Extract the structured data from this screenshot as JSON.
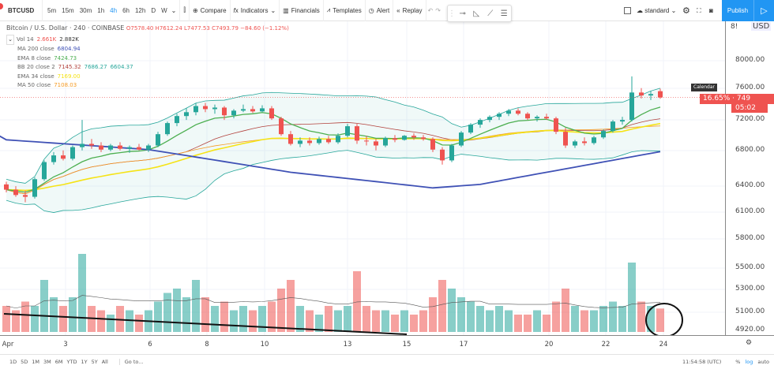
{
  "topbar": {
    "symbol": "BTCUSD",
    "intervals": [
      "5m",
      "15m",
      "30m",
      "1h",
      "4h",
      "6h",
      "12h",
      "D",
      "W"
    ],
    "active_interval": "4h",
    "interval_dropdown": "⌄",
    "candle_icon": "candles-icon",
    "compare": "Compare",
    "indicators": "Indicators",
    "financials": "Financials",
    "templates": "Templates",
    "alert": "Alert",
    "replay": "Replay",
    "undo": "↶",
    "redo": "↷",
    "layout": "standard",
    "publish": "Publish"
  },
  "legend": {
    "title": "Bitcoin / U.S. Dollar · 240 · COINBASE",
    "ohlc": "O7578.40 H7612.24 L7477.53 C7493.79 −84.60 (−1.12%)",
    "indicators": [
      {
        "name": "Vol 14",
        "values": [
          "2.661K",
          "2.882K"
        ],
        "colors": [
          "#ef5350",
          "#333333"
        ]
      },
      {
        "name": "MA 200 close",
        "values": [
          "6804.94"
        ],
        "colors": [
          "#3f51b5"
        ]
      },
      {
        "name": "EMA 8 close",
        "values": [
          "7424.73"
        ],
        "colors": [
          "#4caf50"
        ]
      },
      {
        "name": "BB 20 close 2",
        "values": [
          "7145.32",
          "7686.27",
          "6604.37"
        ],
        "colors": [
          "#b2413c",
          "#26a69a",
          "#26a69a"
        ]
      },
      {
        "name": "EMA 34 close",
        "values": [
          "7169.00"
        ],
        "colors": [
          "#f5e316"
        ]
      },
      {
        "name": "MA 50 close",
        "values": [
          "7108.03"
        ],
        "colors": [
          "#f59a23"
        ]
      }
    ]
  },
  "axis": {
    "currency": "USD",
    "partial_top": "8!",
    "ticks": [
      "8000.00",
      "7600.00",
      "7200.00",
      "6800.00",
      "6400.00",
      "6100.00",
      "5800.00",
      "5500.00",
      "5300.00",
      "5100.00",
      "4920.00"
    ],
    "price_label": "16.65% · 749",
    "countdown": "05:02",
    "tooltip": "Calendar",
    "settings_glyph": "⚙"
  },
  "dates": [
    "Apr",
    "3",
    "6",
    "8",
    "10",
    "13",
    "15",
    "17",
    "20",
    "22",
    "24"
  ],
  "bottombar": {
    "ranges": [
      "1D",
      "5D",
      "1M",
      "3M",
      "6M",
      "YTD",
      "1Y",
      "5Y",
      "All"
    ],
    "goto": "Go to...",
    "time": "11:54:58 (UTC)",
    "pct": "%",
    "log": "log",
    "auto": "auto"
  },
  "colors": {
    "up": "#26a69a",
    "down": "#ef5350",
    "ma200": "#3f51b5",
    "ema8": "#4caf50",
    "ema34": "#f5e316",
    "ma50": "#f59a23",
    "bb": "#26a69a",
    "accent": "#2196f3"
  },
  "chart_data": {
    "type": "candlestick",
    "scale": "log",
    "candles": [
      [
        6420,
        6450,
        6330,
        6360
      ],
      [
        6360,
        6400,
        6280,
        6300
      ],
      [
        6300,
        6350,
        6220,
        6280
      ],
      [
        6280,
        6500,
        6260,
        6480
      ],
      [
        6480,
        6700,
        6460,
        6680
      ],
      [
        6680,
        6800,
        6650,
        6760
      ],
      [
        6760,
        6820,
        6700,
        6720
      ],
      [
        6720,
        6880,
        6700,
        6860
      ],
      [
        6860,
        7200,
        6820,
        6900
      ],
      [
        6900,
        6960,
        6840,
        6880
      ],
      [
        6880,
        6920,
        6800,
        6830
      ],
      [
        6830,
        6900,
        6810,
        6880
      ],
      [
        6880,
        6920,
        6820,
        6840
      ],
      [
        6840,
        6880,
        6790,
        6860
      ],
      [
        6860,
        6900,
        6820,
        6830
      ],
      [
        6830,
        6900,
        6800,
        6880
      ],
      [
        6880,
        7050,
        6860,
        7020
      ],
      [
        7020,
        7180,
        7000,
        7160
      ],
      [
        7160,
        7280,
        7120,
        7250
      ],
      [
        7250,
        7350,
        7200,
        7300
      ],
      [
        7300,
        7420,
        7260,
        7380
      ],
      [
        7380,
        7420,
        7300,
        7340
      ],
      [
        7340,
        7400,
        7280,
        7360
      ],
      [
        7360,
        7380,
        7200,
        7260
      ],
      [
        7260,
        7340,
        7220,
        7320
      ],
      [
        7320,
        7400,
        7300,
        7340
      ],
      [
        7340,
        7380,
        7290,
        7310
      ],
      [
        7310,
        7390,
        7300,
        7350
      ],
      [
        7350,
        7380,
        7200,
        7220
      ],
      [
        7220,
        7240,
        7000,
        7020
      ],
      [
        7020,
        7060,
        6880,
        6900
      ],
      [
        6900,
        6980,
        6860,
        6940
      ],
      [
        6940,
        6980,
        6880,
        6910
      ],
      [
        6910,
        6990,
        6890,
        6960
      ],
      [
        6960,
        7000,
        6900,
        6920
      ],
      [
        6920,
        7030,
        6900,
        7000
      ],
      [
        7000,
        7150,
        6980,
        7120
      ],
      [
        7120,
        7150,
        6900,
        6940
      ],
      [
        6940,
        7000,
        6880,
        6930
      ],
      [
        6930,
        6960,
        6820,
        6880
      ],
      [
        6880,
        6990,
        6860,
        6970
      ],
      [
        6970,
        7010,
        6920,
        6950
      ],
      [
        6950,
        7010,
        6940,
        7000
      ],
      [
        7000,
        7030,
        6950,
        6980
      ],
      [
        6980,
        7010,
        6940,
        6960
      ],
      [
        6960,
        6980,
        6800,
        6830
      ],
      [
        6830,
        6860,
        6650,
        6700
      ],
      [
        6700,
        6900,
        6680,
        6880
      ],
      [
        6880,
        7060,
        6860,
        7040
      ],
      [
        7040,
        7160,
        7020,
        7140
      ],
      [
        7140,
        7220,
        7100,
        7200
      ],
      [
        7200,
        7260,
        7170,
        7240
      ],
      [
        7240,
        7300,
        7200,
        7280
      ],
      [
        7280,
        7340,
        7250,
        7320
      ],
      [
        7320,
        7350,
        7260,
        7280
      ],
      [
        7280,
        7300,
        7200,
        7220
      ],
      [
        7220,
        7260,
        7180,
        7240
      ],
      [
        7240,
        7280,
        7200,
        7220
      ],
      [
        7220,
        7240,
        7020,
        7050
      ],
      [
        7050,
        7100,
        6850,
        6880
      ],
      [
        6880,
        6950,
        6850,
        6930
      ],
      [
        6930,
        6980,
        6880,
        6910
      ],
      [
        6910,
        7000,
        6890,
        6980
      ],
      [
        6980,
        7080,
        6960,
        7060
      ],
      [
        7060,
        7200,
        7040,
        7180
      ],
      [
        7180,
        7240,
        7140,
        7200
      ],
      [
        7200,
        7780,
        7180,
        7560
      ],
      [
        7560,
        7620,
        7480,
        7520
      ],
      [
        7520,
        7580,
        7460,
        7540
      ],
      [
        7578,
        7612,
        7477,
        7494
      ]
    ],
    "volume_k": [
      3,
      2.5,
      3.5,
      3,
      6,
      4,
      3,
      4,
      9,
      3,
      2.5,
      2,
      3,
      2.5,
      2,
      2.5,
      3.5,
      4.5,
      5,
      4,
      6,
      4,
      3,
      3.5,
      2.5,
      3,
      2.5,
      3,
      3.5,
      5,
      6,
      3,
      2.5,
      2,
      3,
      2.5,
      3,
      7,
      3,
      2.5,
      2.5,
      2,
      2.5,
      2,
      2.5,
      4,
      6,
      5,
      4,
      3.5,
      3,
      2.5,
      3,
      2.5,
      2,
      2,
      2.5,
      2,
      3.5,
      5,
      3,
      2.5,
      2.5,
      3,
      3.5,
      3,
      8,
      3.5,
      3,
      2.7
    ],
    "ma200": [
      [
        0,
        6950
      ],
      [
        15,
        6830
      ],
      [
        30,
        6560
      ],
      [
        45,
        6380
      ],
      [
        50,
        6420
      ],
      [
        60,
        6620
      ],
      [
        69,
        6805
      ]
    ]
  }
}
